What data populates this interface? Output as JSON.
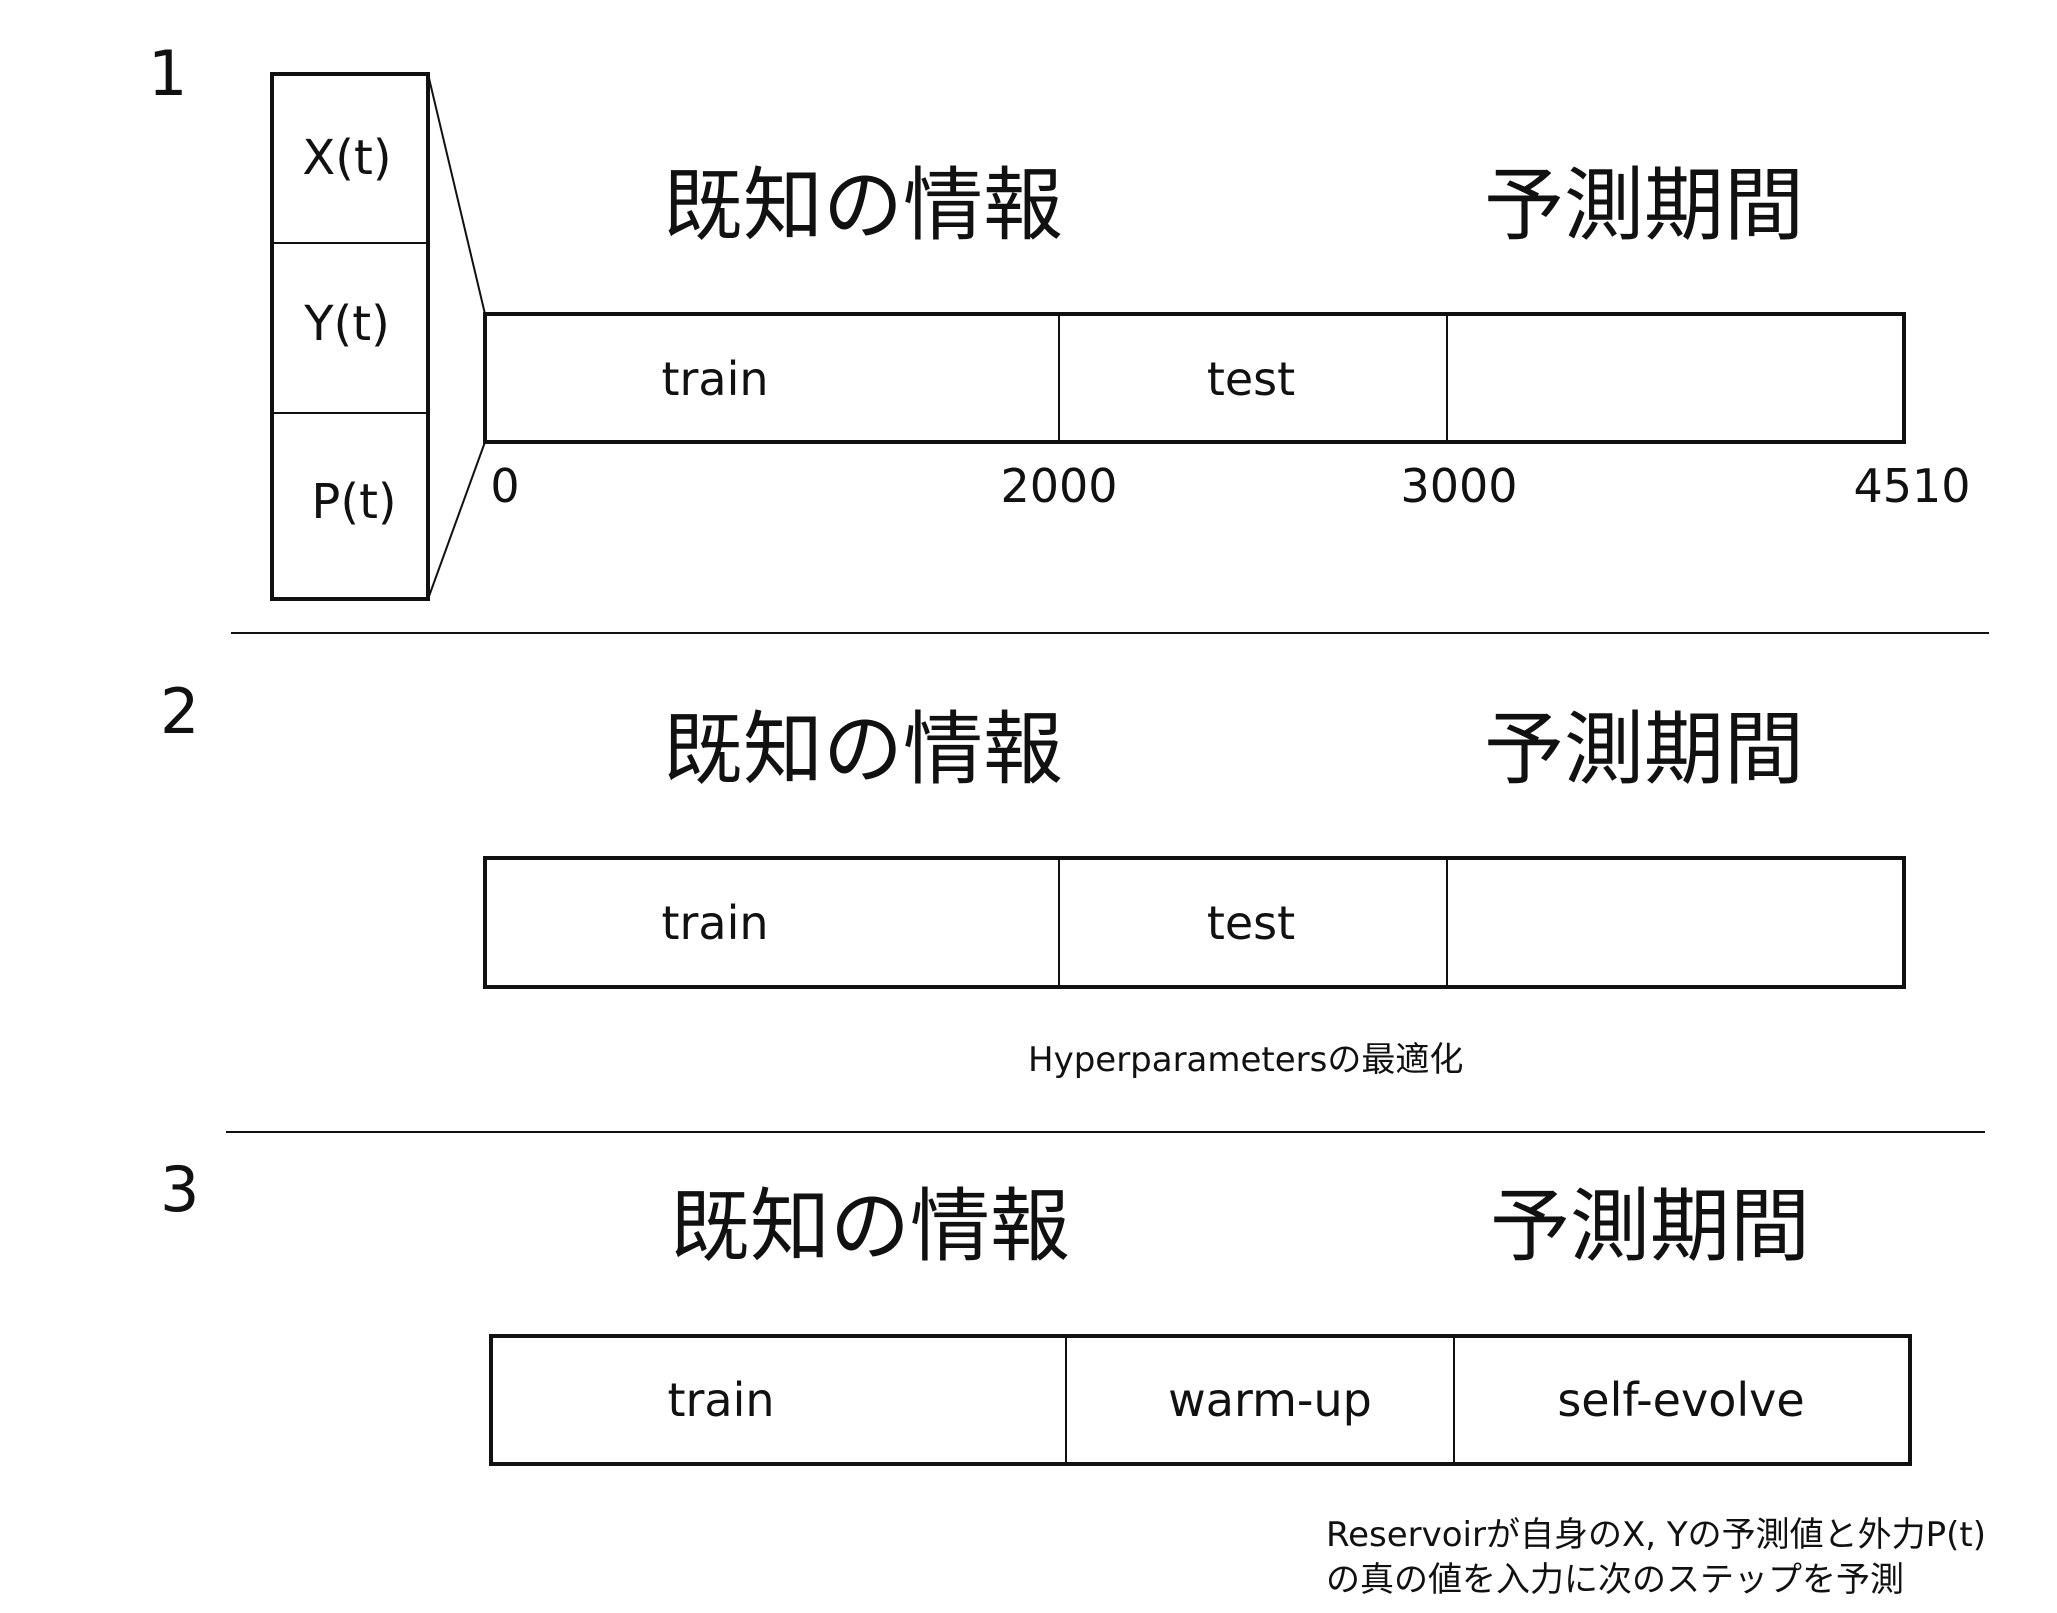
{
  "sections": [
    {
      "number": "1",
      "known_label": "既知の情報",
      "forecast_label": "予測期間",
      "segments": [
        "train",
        "test",
        ""
      ],
      "variables": [
        "X(t)",
        "Y(t)",
        "P(t)"
      ],
      "ticks": [
        "0",
        "2000",
        "3000",
        "4510"
      ]
    },
    {
      "number": "2",
      "known_label": "既知の情報",
      "forecast_label": "予測期間",
      "segments": [
        "train",
        "test",
        ""
      ],
      "note": "Hyperparametersの最適化"
    },
    {
      "number": "3",
      "known_label": "既知の情報",
      "forecast_label": "予測期間",
      "segments": [
        "train",
        "warm-up",
        "self-evolve"
      ],
      "note_lines": [
        "Reservoirが自身のX, Yの予測値と外力P(t)",
        "の真の値を入力に次のステップを予測"
      ]
    }
  ]
}
